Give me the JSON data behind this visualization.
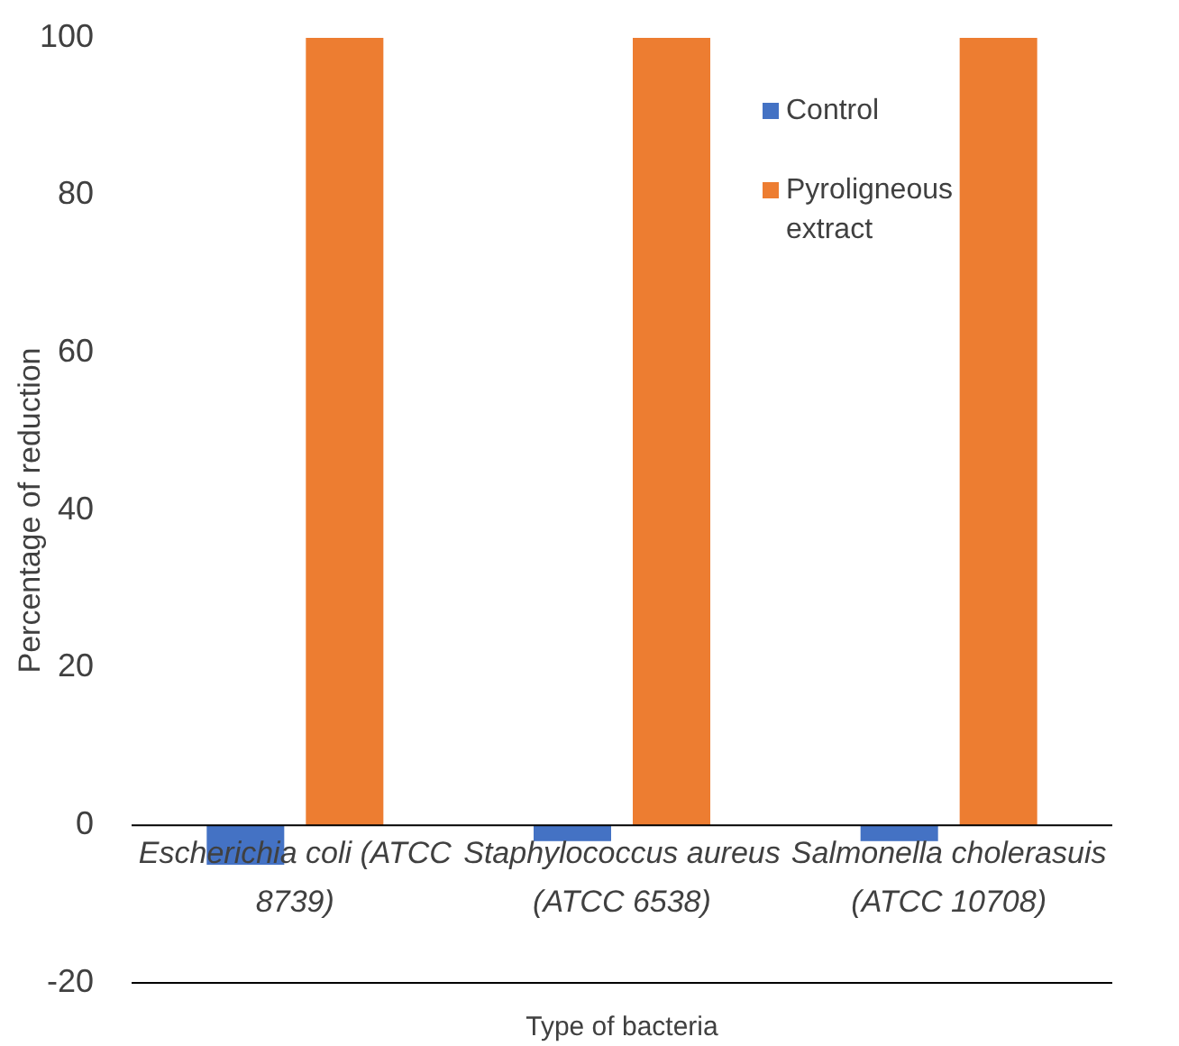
{
  "chart_data": {
    "type": "bar",
    "xlabel": "Type of bacteria",
    "ylabel": "Percentage of reduction",
    "categories": [
      "Escherichia coli (ATCC 8739)",
      "Staphylococcus aureus (ATCC 6538)",
      "Salmonella cholerasuis (ATCC 10708)"
    ],
    "series": [
      {
        "name": "Control",
        "color": "#4472c4",
        "values": [
          -5,
          -2,
          -2
        ]
      },
      {
        "name": "Pyroligneous extract",
        "color": "#ed7d31",
        "values": [
          100,
          100,
          100
        ]
      }
    ],
    "ylim": [
      -20,
      100
    ],
    "yticks": [
      -20,
      0,
      20,
      40,
      60,
      80,
      100
    ],
    "grid": false,
    "legend": "top right"
  }
}
